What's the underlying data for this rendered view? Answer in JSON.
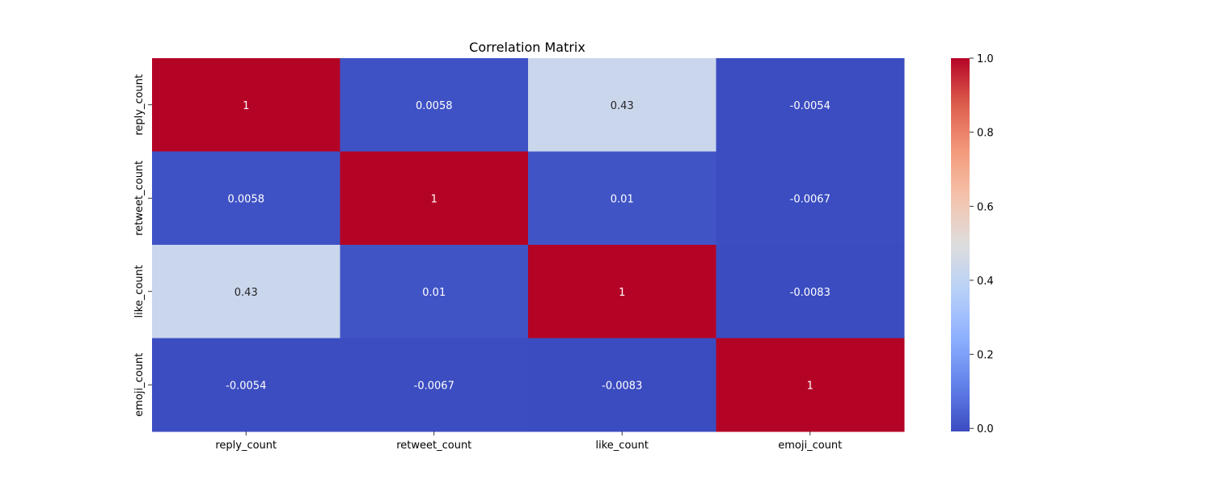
{
  "chart_data": {
    "type": "heatmap",
    "title": "Correlation Matrix",
    "rows": [
      "reply_count",
      "retweet_count",
      "like_count",
      "emoji_count"
    ],
    "columns": [
      "reply_count",
      "retweet_count",
      "like_count",
      "emoji_count"
    ],
    "values": [
      [
        1,
        0.0058,
        0.43,
        -0.0054
      ],
      [
        0.0058,
        1,
        0.01,
        -0.0067
      ],
      [
        0.43,
        0.01,
        1,
        -0.0083
      ],
      [
        -0.0054,
        -0.0067,
        -0.0083,
        1
      ]
    ],
    "cell_labels": [
      [
        "1",
        "0.0058",
        "0.43",
        "-0.0054"
      ],
      [
        "0.0058",
        "1",
        "0.01",
        "-0.0067"
      ],
      [
        "0.43",
        "0.01",
        "1",
        "-0.0083"
      ],
      [
        "-0.0054",
        "-0.0067",
        "-0.0083",
        "1"
      ]
    ],
    "colormap": "coolwarm",
    "colorbar": {
      "range": [
        -0.0083,
        1.0
      ],
      "ticks": [
        0.0,
        0.2,
        0.4,
        0.6,
        0.8,
        1.0
      ],
      "tick_labels": [
        "0.0",
        "0.2",
        "0.4",
        "0.6",
        "0.8",
        "1.0"
      ]
    },
    "grid": false,
    "legend": "colorbar-right"
  }
}
